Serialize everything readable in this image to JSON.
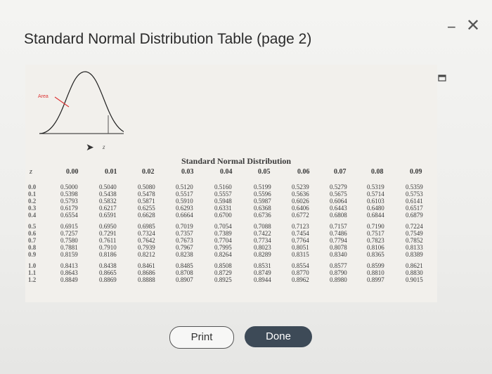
{
  "window": {
    "title": "Standard Normal Distribution Table (page 2)",
    "minimize_glyph": "−",
    "close_glyph": "✕"
  },
  "figure": {
    "area_label": "Area",
    "z_label": "z"
  },
  "table": {
    "title": "Standard Normal Distribution",
    "z_header": "z",
    "column_headers": [
      "0.00",
      "0.01",
      "0.02",
      "0.03",
      "0.04",
      "0.05",
      "0.06",
      "0.07",
      "0.08",
      "0.09"
    ],
    "z_values": [
      "0.0",
      "0.1",
      "0.2",
      "0.3",
      "0.4",
      "0.5",
      "0.6",
      "0.7",
      "0.8",
      "0.9",
      "1.0",
      "1.1",
      "1.2"
    ],
    "rows": [
      [
        "0.5000",
        "0.5040",
        "0.5080",
        "0.5120",
        "0.5160",
        "0.5199",
        "0.5239",
        "0.5279",
        "0.5319",
        "0.5359"
      ],
      [
        "0.5398",
        "0.5438",
        "0.5478",
        "0.5517",
        "0.5557",
        "0.5596",
        "0.5636",
        "0.5675",
        "0.5714",
        "0.5753"
      ],
      [
        "0.5793",
        "0.5832",
        "0.5871",
        "0.5910",
        "0.5948",
        "0.5987",
        "0.6026",
        "0.6064",
        "0.6103",
        "0.6141"
      ],
      [
        "0.6179",
        "0.6217",
        "0.6255",
        "0.6293",
        "0.6331",
        "0.6368",
        "0.6406",
        "0.6443",
        "0.6480",
        "0.6517"
      ],
      [
        "0.6554",
        "0.6591",
        "0.6628",
        "0.6664",
        "0.6700",
        "0.6736",
        "0.6772",
        "0.6808",
        "0.6844",
        "0.6879"
      ],
      [
        "0.6915",
        "0.6950",
        "0.6985",
        "0.7019",
        "0.7054",
        "0.7088",
        "0.7123",
        "0.7157",
        "0.7190",
        "0.7224"
      ],
      [
        "0.7257",
        "0.7291",
        "0.7324",
        "0.7357",
        "0.7389",
        "0.7422",
        "0.7454",
        "0.7486",
        "0.7517",
        "0.7549"
      ],
      [
        "0.7580",
        "0.7611",
        "0.7642",
        "0.7673",
        "0.7704",
        "0.7734",
        "0.7764",
        "0.7794",
        "0.7823",
        "0.7852"
      ],
      [
        "0.7881",
        "0.7910",
        "0.7939",
        "0.7967",
        "0.7995",
        "0.8023",
        "0.8051",
        "0.8078",
        "0.8106",
        "0.8133"
      ],
      [
        "0.8159",
        "0.8186",
        "0.8212",
        "0.8238",
        "0.8264",
        "0.8289",
        "0.8315",
        "0.8340",
        "0.8365",
        "0.8389"
      ],
      [
        "0.8413",
        "0.8438",
        "0.8461",
        "0.8485",
        "0.8508",
        "0.8531",
        "0.8554",
        "0.8577",
        "0.8599",
        "0.8621"
      ],
      [
        "0.8643",
        "0.8665",
        "0.8686",
        "0.8708",
        "0.8729",
        "0.8749",
        "0.8770",
        "0.8790",
        "0.8810",
        "0.8830"
      ],
      [
        "0.8849",
        "0.8869",
        "0.8888",
        "0.8907",
        "0.8925",
        "0.8944",
        "0.8962",
        "0.8980",
        "0.8997",
        "0.9015"
      ]
    ]
  },
  "buttons": {
    "print": "Print",
    "done": "Done"
  },
  "colors": {
    "done_bg": "#3d4a57",
    "curve_area_label": "#dd3333"
  }
}
